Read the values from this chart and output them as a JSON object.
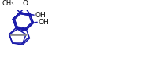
{
  "bg_color": "#ffffff",
  "line_color": "#1a1aaa",
  "bond_lw": 1.1,
  "gray_color": "#888888",
  "text_color": "#000000",
  "font_size": 6.5,
  "figsize": [
    1.84,
    0.83
  ],
  "dpi": 100,
  "xlim": [
    0,
    1.84
  ],
  "ylim": [
    0,
    0.83
  ],
  "methyl_label": "CH₃",
  "o_label": "O",
  "oh1_label": "OH",
  "oh2_label": "OH"
}
